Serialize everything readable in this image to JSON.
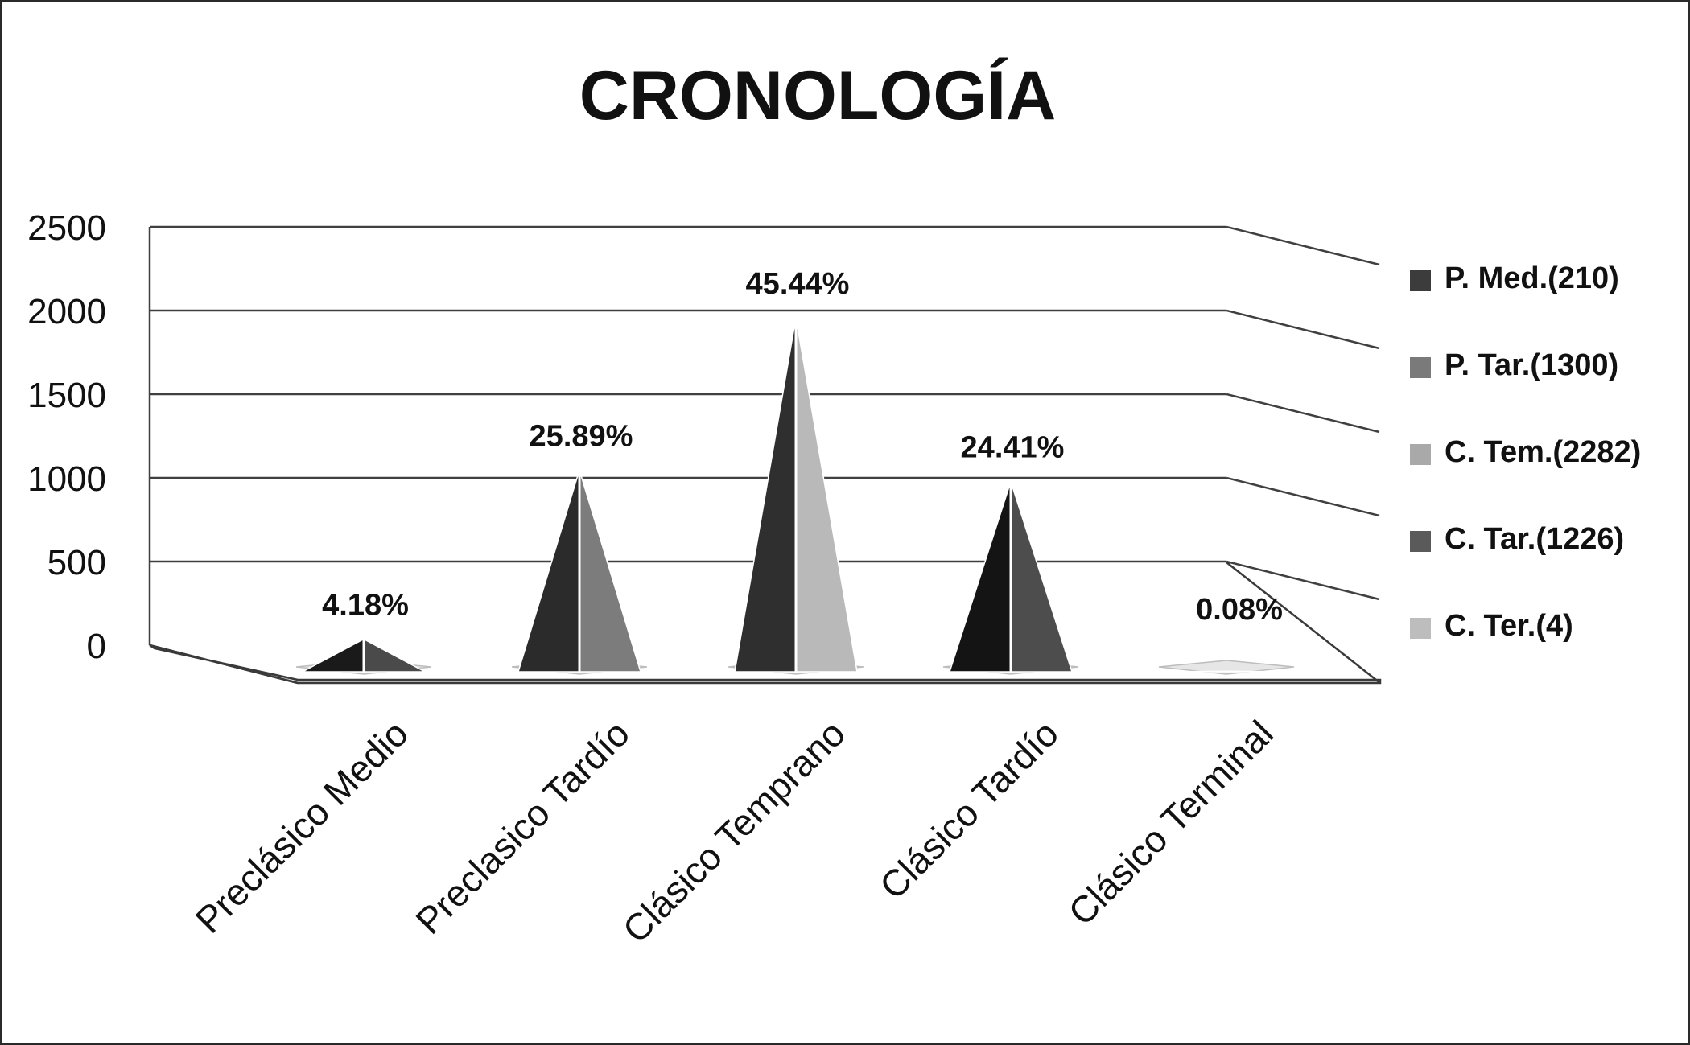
{
  "chart_data": {
    "type": "bar",
    "shape": "3d-pyramid",
    "title": "CRONOLOGÍA",
    "xlabel": "",
    "ylabel": "",
    "ylim": [
      0,
      2500
    ],
    "yticks": [
      0,
      500,
      1000,
      1500,
      2000,
      2500
    ],
    "grid": true,
    "legend_position": "right",
    "categories": [
      "Preclásico Medio",
      "Preclasico Tardío",
      "Clásico Temprano",
      "Clásico Tardío",
      "Clásico Terminal"
    ],
    "values": [
      210,
      1300,
      2282,
      1226,
      4
    ],
    "data_labels": [
      "4.18%",
      "25.89%",
      "45.44%",
      "24.41%",
      "0.08%"
    ],
    "legend": [
      "P. Med.(210)",
      "P. Tar.(1300)",
      "C. Tem.(2282)",
      "C. Tar.(1226)",
      "C. Ter.(4)"
    ],
    "colors": {
      "dark_faces": [
        "#1a1a1a",
        "#2b2b2b",
        "#2f2f2f",
        "#141414",
        "#8a8a8a"
      ],
      "light_faces": [
        "#4a4a4a",
        "#7c7c7c",
        "#b9b9b9",
        "#4d4d4d",
        "#cfcfcf"
      ],
      "legend_swatches": [
        "#3c3c3c",
        "#7a7a7a",
        "#a9a9a9",
        "#5a5a5a",
        "#bdbdbd"
      ],
      "grid": "#404040",
      "floor": "#ffffff"
    }
  }
}
